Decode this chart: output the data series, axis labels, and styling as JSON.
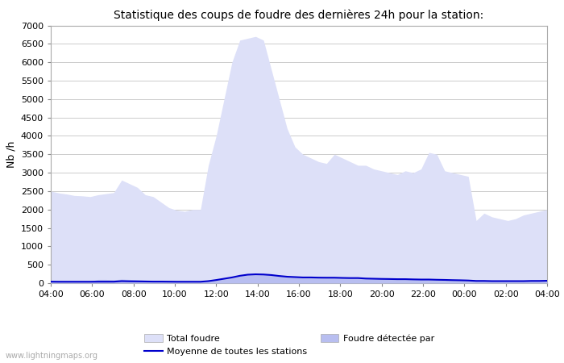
{
  "title": "Statistique des coups de foudre des dernières 24h pour la station:",
  "ylabel": "Nb /h",
  "ylim": [
    0,
    7000
  ],
  "yticks": [
    0,
    500,
    1000,
    1500,
    2000,
    2500,
    3000,
    3500,
    4000,
    4500,
    5000,
    5500,
    6000,
    6500,
    7000
  ],
  "x_labels": [
    "04:00",
    "06:00",
    "08:00",
    "10:00",
    "12:00",
    "14:00",
    "16:00",
    "18:00",
    "20:00",
    "22:00",
    "00:00",
    "02:00",
    "04:00"
  ],
  "background_color": "#ffffff",
  "plot_bg_color": "#ffffff",
  "fill_color_total": "#dde0f8",
  "fill_color_detected": "#b8bef0",
  "line_color_moyenne": "#0000cc",
  "watermark": "www.lightningmaps.org",
  "legend_total": "Total foudre",
  "legend_detected": "Foudre détectée par",
  "legend_moyenne": "Moyenne de toutes les stations",
  "total_foudre": [
    2500,
    2450,
    2420,
    2380,
    2370,
    2350,
    2400,
    2430,
    2460,
    2800,
    2700,
    2600,
    2400,
    2350,
    2200,
    2050,
    1980,
    1950,
    2000,
    2000,
    3200,
    4000,
    5000,
    6000,
    6600,
    6650,
    6700,
    6600,
    5800,
    5000,
    4200,
    3700,
    3500,
    3400,
    3300,
    3250,
    3500,
    3400,
    3300,
    3200,
    3200,
    3100,
    3050,
    3000,
    2950,
    3050,
    3000,
    3100,
    3550,
    3500,
    3050,
    3000,
    2950,
    2900,
    1700,
    1900,
    1800,
    1750,
    1700,
    1750,
    1850,
    1900,
    1950,
    2000
  ],
  "detected_foudre": [
    60,
    55,
    55,
    55,
    55,
    55,
    100,
    100,
    90,
    110,
    100,
    90,
    80,
    75,
    70,
    65,
    60,
    60,
    60,
    60,
    80,
    100,
    130,
    160,
    200,
    230,
    240,
    235,
    220,
    200,
    180,
    170,
    160,
    160,
    155,
    150,
    150,
    145,
    140,
    140,
    130,
    125,
    120,
    115,
    110,
    110,
    105,
    100,
    110,
    110,
    90,
    85,
    80,
    75,
    60,
    60,
    55,
    55,
    55,
    55,
    55,
    60,
    60,
    65
  ],
  "moyenne_stations": [
    40,
    38,
    38,
    38,
    38,
    38,
    40,
    40,
    40,
    55,
    50,
    48,
    45,
    42,
    42,
    40,
    38,
    38,
    38,
    38,
    55,
    85,
    120,
    155,
    200,
    230,
    240,
    235,
    220,
    195,
    175,
    165,
    155,
    155,
    150,
    148,
    148,
    142,
    138,
    138,
    125,
    120,
    115,
    112,
    108,
    108,
    102,
    98,
    98,
    92,
    88,
    82,
    78,
    72,
    60,
    60,
    55,
    55,
    55,
    55,
    55,
    60,
    60,
    65
  ],
  "n_points": 64
}
